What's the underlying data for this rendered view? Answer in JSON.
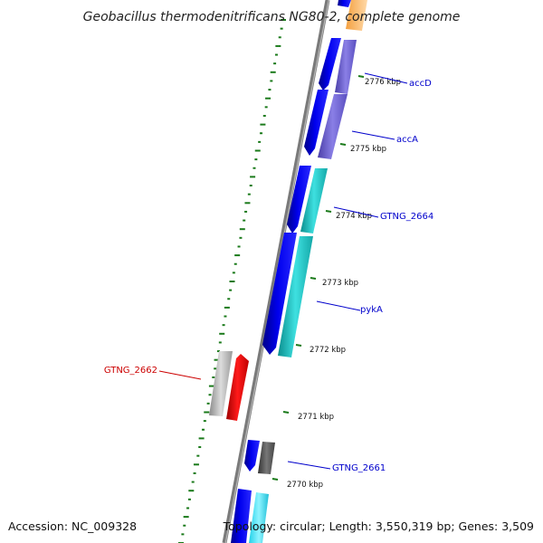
{
  "title": "Geobacillus thermodenitrificans NG80-2, complete genome",
  "accession": "Accession: NC_009328",
  "summary": "Topology: circular; Length: 3,550,319 bp; Genes: 3,509",
  "colors": {
    "backbone": "#7a7a7a",
    "gc_skew_dots": "#1a7a1a",
    "tick": "#1a7a1a",
    "label_blue": "#0000cc",
    "label_red": "#cc0000"
  },
  "ticks": [
    {
      "label": "2776 kbp"
    },
    {
      "label": "2775 kbp"
    },
    {
      "label": "2774 kbp"
    },
    {
      "label": "2773 kbp"
    },
    {
      "label": "2772 kbp"
    },
    {
      "label": "2771 kbp"
    },
    {
      "label": "2770 kbp"
    }
  ],
  "genes": [
    {
      "name": "accD",
      "color": "#0000ee",
      "rna_color": "#7b6fd6"
    },
    {
      "name": "accA",
      "color": "#0000ee",
      "rna_color": "#7b6fd6"
    },
    {
      "name": "GTNG_2664",
      "color": "#0000ee",
      "rna_color": "#1fc8c8"
    },
    {
      "name": "pykA",
      "color": "#0000ee",
      "rna_color": "#1fc8c8"
    },
    {
      "name": "GTNG_2662",
      "color": "#ee0000",
      "rna_color": "#b0b0b0"
    },
    {
      "name": "GTNG_2661",
      "color": "#0000ee",
      "rna_color": "#555555"
    }
  ]
}
